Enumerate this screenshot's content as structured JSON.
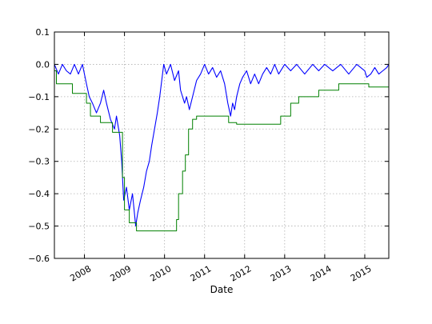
{
  "chart_data": {
    "type": "line",
    "title": "",
    "xlabel": "Date",
    "ylabel": "",
    "xlim": [
      2007.25,
      2015.6
    ],
    "ylim": [
      -0.6,
      0.1
    ],
    "grid": true,
    "xticks": [
      {
        "value": 2008,
        "label": "2008"
      },
      {
        "value": 2009,
        "label": "2009"
      },
      {
        "value": 2010,
        "label": "2010"
      },
      {
        "value": 2011,
        "label": "2011"
      },
      {
        "value": 2012,
        "label": "2012"
      },
      {
        "value": 2013,
        "label": "2013"
      },
      {
        "value": 2014,
        "label": "2014"
      },
      {
        "value": 2015,
        "label": "2015"
      }
    ],
    "yticks": [
      {
        "value": 0.1,
        "label": "0.1"
      },
      {
        "value": 0.0,
        "label": "0.0"
      },
      {
        "value": -0.1,
        "label": "−0.1"
      },
      {
        "value": -0.2,
        "label": "−0.2"
      },
      {
        "value": -0.3,
        "label": "−0.3"
      },
      {
        "value": -0.4,
        "label": "−0.4"
      },
      {
        "value": -0.5,
        "label": "−0.5"
      },
      {
        "value": -0.6,
        "label": "−0.6"
      }
    ],
    "series": [
      {
        "color": "#0000ff",
        "style": "line",
        "points": [
          [
            2007.25,
            0.0
          ],
          [
            2007.35,
            -0.03
          ],
          [
            2007.45,
            0.0
          ],
          [
            2007.55,
            -0.02
          ],
          [
            2007.65,
            -0.03
          ],
          [
            2007.75,
            0.0
          ],
          [
            2007.85,
            -0.03
          ],
          [
            2007.95,
            0.0
          ],
          [
            2008.05,
            -0.06
          ],
          [
            2008.12,
            -0.1
          ],
          [
            2008.2,
            -0.12
          ],
          [
            2008.3,
            -0.15
          ],
          [
            2008.4,
            -0.12
          ],
          [
            2008.48,
            -0.08
          ],
          [
            2008.55,
            -0.12
          ],
          [
            2008.65,
            -0.17
          ],
          [
            2008.75,
            -0.2
          ],
          [
            2008.8,
            -0.16
          ],
          [
            2008.88,
            -0.22
          ],
          [
            2008.93,
            -0.3
          ],
          [
            2008.98,
            -0.42
          ],
          [
            2009.05,
            -0.38
          ],
          [
            2009.12,
            -0.45
          ],
          [
            2009.2,
            -0.4
          ],
          [
            2009.28,
            -0.5
          ],
          [
            2009.33,
            -0.46
          ],
          [
            2009.4,
            -0.42
          ],
          [
            2009.48,
            -0.38
          ],
          [
            2009.55,
            -0.33
          ],
          [
            2009.62,
            -0.3
          ],
          [
            2009.68,
            -0.25
          ],
          [
            2009.75,
            -0.2
          ],
          [
            2009.82,
            -0.15
          ],
          [
            2009.88,
            -0.1
          ],
          [
            2009.93,
            -0.05
          ],
          [
            2009.98,
            0.0
          ],
          [
            2010.05,
            -0.03
          ],
          [
            2010.15,
            0.0
          ],
          [
            2010.25,
            -0.05
          ],
          [
            2010.35,
            -0.02
          ],
          [
            2010.4,
            -0.08
          ],
          [
            2010.5,
            -0.12
          ],
          [
            2010.55,
            -0.1
          ],
          [
            2010.62,
            -0.14
          ],
          [
            2010.7,
            -0.1
          ],
          [
            2010.8,
            -0.05
          ],
          [
            2010.9,
            -0.03
          ],
          [
            2011.0,
            0.0
          ],
          [
            2011.1,
            -0.03
          ],
          [
            2011.2,
            -0.01
          ],
          [
            2011.3,
            -0.04
          ],
          [
            2011.4,
            -0.02
          ],
          [
            2011.5,
            -0.06
          ],
          [
            2011.58,
            -0.12
          ],
          [
            2011.65,
            -0.16
          ],
          [
            2011.7,
            -0.12
          ],
          [
            2011.75,
            -0.14
          ],
          [
            2011.8,
            -0.1
          ],
          [
            2011.88,
            -0.06
          ],
          [
            2011.95,
            -0.04
          ],
          [
            2012.05,
            -0.02
          ],
          [
            2012.15,
            -0.06
          ],
          [
            2012.25,
            -0.03
          ],
          [
            2012.35,
            -0.06
          ],
          [
            2012.45,
            -0.03
          ],
          [
            2012.55,
            -0.01
          ],
          [
            2012.65,
            -0.03
          ],
          [
            2012.75,
            0.0
          ],
          [
            2012.85,
            -0.03
          ],
          [
            2013.0,
            0.0
          ],
          [
            2013.15,
            -0.02
          ],
          [
            2013.3,
            0.0
          ],
          [
            2013.5,
            -0.03
          ],
          [
            2013.7,
            0.0
          ],
          [
            2013.85,
            -0.02
          ],
          [
            2014.0,
            0.0
          ],
          [
            2014.2,
            -0.02
          ],
          [
            2014.4,
            0.0
          ],
          [
            2014.6,
            -0.03
          ],
          [
            2014.8,
            0.0
          ],
          [
            2015.0,
            -0.02
          ],
          [
            2015.05,
            -0.04
          ],
          [
            2015.15,
            -0.03
          ],
          [
            2015.25,
            -0.01
          ],
          [
            2015.35,
            -0.03
          ],
          [
            2015.45,
            -0.02
          ],
          [
            2015.55,
            -0.01
          ],
          [
            2015.6,
            0.0
          ]
        ]
      },
      {
        "color": "#008000",
        "style": "step",
        "points": [
          [
            2007.25,
            -0.02
          ],
          [
            2007.3,
            -0.06
          ],
          [
            2007.7,
            -0.09
          ],
          [
            2008.05,
            -0.12
          ],
          [
            2008.15,
            -0.16
          ],
          [
            2008.4,
            -0.18
          ],
          [
            2008.7,
            -0.21
          ],
          [
            2008.95,
            -0.35
          ],
          [
            2009.0,
            -0.45
          ],
          [
            2009.12,
            -0.49
          ],
          [
            2009.3,
            -0.515
          ],
          [
            2010.3,
            -0.48
          ],
          [
            2010.35,
            -0.4
          ],
          [
            2010.45,
            -0.33
          ],
          [
            2010.52,
            -0.28
          ],
          [
            2010.6,
            -0.2
          ],
          [
            2010.7,
            -0.17
          ],
          [
            2010.8,
            -0.16
          ],
          [
            2011.6,
            -0.18
          ],
          [
            2011.8,
            -0.185
          ],
          [
            2012.9,
            -0.16
          ],
          [
            2013.15,
            -0.12
          ],
          [
            2013.35,
            -0.1
          ],
          [
            2013.85,
            -0.08
          ],
          [
            2014.35,
            -0.06
          ],
          [
            2015.1,
            -0.07
          ],
          [
            2015.6,
            -0.07
          ]
        ]
      }
    ]
  }
}
